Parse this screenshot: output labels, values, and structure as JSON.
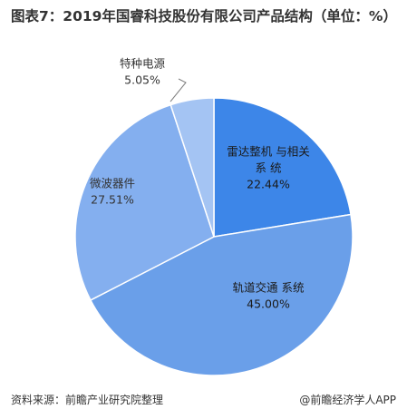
{
  "title": "图表7：2019年国睿科技股份有限公司产品结构（单位：%）",
  "footer": {
    "source": "资料来源：前瞻产业研究院整理",
    "brand": "@前瞻经济学人APP"
  },
  "colors": {
    "slice_leida": "#3D86E8",
    "slice_guidao": "#6A9FE9",
    "slice_weibo": "#84AFEF",
    "slice_tezhong": "#A4C4F3",
    "border": "#ffffff",
    "label_dark": "#333333",
    "leader_line": "#7f7f7f"
  },
  "chart_data": {
    "type": "pie",
    "title": "图表7：2019年国睿科技股份有限公司产品结构（单位：%）",
    "slices": [
      {
        "label": "雷达整机 与相关系 统",
        "label_lines": [
          "雷达整机  与相关",
          "系  统"
        ],
        "value": 22.44,
        "value_text": "22.44%",
        "color": "#3D86E8"
      },
      {
        "label": "轨道交通 系统",
        "label_lines": [
          "轨道交通  系统"
        ],
        "value": 45.0,
        "value_text": "45.00%",
        "color": "#6A9FE9"
      },
      {
        "label": "微波器件",
        "label_lines": [
          "微波器件"
        ],
        "value": 27.51,
        "value_text": "27.51%",
        "color": "#84AFEF"
      },
      {
        "label": "特种电源",
        "label_lines": [
          "特种电源"
        ],
        "value": 5.05,
        "value_text": "5.05%",
        "color": "#A4C4F3"
      }
    ],
    "start_angle_deg": 0,
    "direction": "clockwise"
  }
}
